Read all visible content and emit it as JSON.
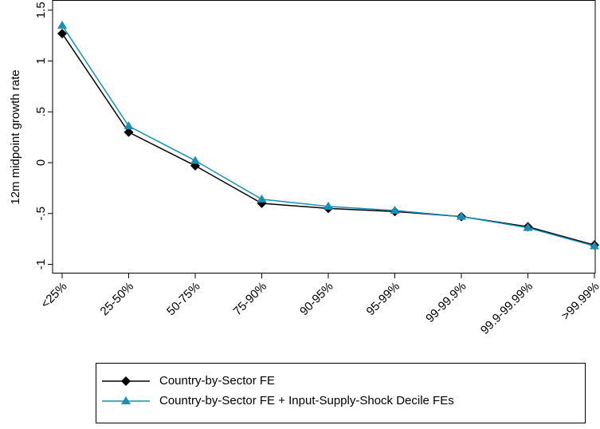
{
  "chart_data": {
    "type": "line",
    "y_label": "12m midpoint growth rate",
    "categories": [
      "<25%",
      "25-50%",
      "50-75%",
      "75-90%",
      "90-95%",
      "95-99%",
      "99-99.9%",
      "99.9-99.99%",
      ">99.99%"
    ],
    "series": [
      {
        "name": "Country-by-Sector FE",
        "color": "#000000",
        "marker": "diamond",
        "values": [
          1.27,
          0.3,
          -0.03,
          -0.4,
          -0.45,
          -0.48,
          -0.53,
          -0.63,
          -0.81
        ]
      },
      {
        "name": "Country-by-Sector FE + Input-Supply-Shock Decile FEs",
        "color": "#1a8fb5",
        "marker": "triangle",
        "values": [
          1.35,
          0.36,
          0.02,
          -0.36,
          -0.43,
          -0.47,
          -0.53,
          -0.64,
          -0.82
        ]
      }
    ],
    "ylim": [
      -1.09,
      1.6
    ],
    "yticks": [
      1.5,
      1,
      {
        "value": 0.5,
        "label": ".5"
      },
      0,
      {
        "value": -0.5,
        "label": "-.5"
      },
      -1
    ]
  }
}
